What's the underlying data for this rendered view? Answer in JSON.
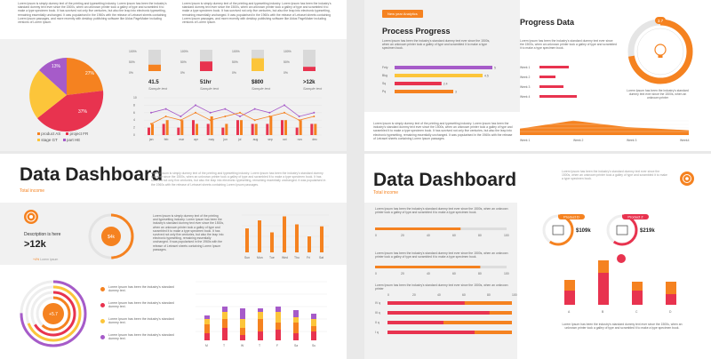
{
  "colors": {
    "orange": "#f58220",
    "red": "#e8334f",
    "yellow": "#fcc53a",
    "purple": "#a65bc9",
    "grey": "#dcdcdc"
  },
  "lorem": {
    "p_long": "Lorem Ipsum is simply dummy text of the printing and typesetting industry. Lorem Ipsum has been the industry's standard dummy text ever since the 1500s, when an unknown printer took a galley of type and scrambled it to make a type specimen book. It has survived not only five centuries, but also the leap into electronic typesetting, remaining essentially unchanged. It was popularised in the 1960s with the release of Letraset sheets containing Lorem Ipsum passages, and more recently with desktop publishing software like Aldus PageMaker including versions of Lorem Ipsum.",
    "p_med": "Lorem Ipsum is simply dummy text of the printing and typesetting industry. Lorem Ipsum has been the industry's standard dummy text ever since the 1500s, when an unknown printer took a galley of type and scrambled it to make a type specimen book. It has survived not only five centuries, but also the leap into electronic typesetting, remaining essentially unchanged. It was popularised in the 1960s with the release of Letraset sheets containing Lorem Ipsum passages.",
    "p_short": "Lorem Ipsum has been the industry's standard dummy text ever since the 1500s, when an unknown printer took a galley of type and scrambled it to make a type specimen book.",
    "p_tiny": "Lorem Ipsum has been the industry's standard dummy text ever since the 1500s, when an unknown printer",
    "p_item": "Lorem Ipsum has been the industry's standard dummy text."
  },
  "slide1": {
    "pie": {
      "labels": [
        "27%",
        "37%",
        "13%"
      ],
      "legend": [
        "product AS",
        "project FR",
        "stage GT",
        "part HE"
      ]
    },
    "stats": [
      {
        "value": "41.5",
        "label": "Sample text",
        "fill": 0.3
      },
      {
        "value": "51hr",
        "label": "Sample text",
        "fill": 0.45
      },
      {
        "value": "$800",
        "label": "Sample text",
        "fill": 0.6
      },
      {
        "value": ">12k",
        "label": "Sample text",
        "fill": 0.2
      }
    ],
    "bar_ticks": [
      "100%",
      "50%",
      "0%"
    ],
    "combo": {
      "months": [
        "jan",
        "feb",
        "mar",
        "apr",
        "may",
        "jun",
        "jul",
        "aug",
        "sep",
        "oct",
        "nov",
        "dec"
      ],
      "yticks": [
        "10",
        "8",
        "6",
        "4",
        "2",
        "0"
      ]
    }
  },
  "slide2": {
    "badge": "New year Analytics",
    "process_title": "Process Progress",
    "bars": [
      {
        "label": "Fely",
        "value": "5",
        "v": 5
      },
      {
        "label": "Bkg",
        "value": "4.5",
        "v": 4.5
      },
      {
        "label": "Sq",
        "value": "2.4",
        "v": 2.4
      },
      {
        "label": "Pq",
        "value": "3",
        "v": 3
      }
    ],
    "progress_title": "Progress Data",
    "ring_value": "3.7",
    "weeks": [
      {
        "label": "Week 1",
        "v": 0.55
      },
      {
        "label": "Week 2",
        "v": 0.3
      },
      {
        "label": "Week 3",
        "v": 0.45
      },
      {
        "label": "Week 4",
        "v": 0.7
      }
    ],
    "area_labels": [
      "Week 1",
      "Week 2",
      "Week 3",
      "Week4"
    ]
  },
  "slide3": {
    "title": "Data Dashboard",
    "subtitle": "Total income",
    "desc_label": "Description is here",
    "desc_value": ">12k",
    "small_note": "+4%",
    "small_note2": "Lorem ipsum",
    "ring_value": "$4k",
    "days": [
      "Sun",
      "Mon",
      "Tue",
      "Wed",
      "Thu",
      "Fri",
      "Sat"
    ],
    "day_values": [
      60,
      80,
      50,
      90,
      70,
      40,
      65
    ],
    "center_value": "+5.7",
    "week_days": [
      "M",
      "T",
      "W",
      "T",
      "F",
      "Sa",
      "Su"
    ]
  },
  "slide4": {
    "title": "Data Dashboard",
    "subtitle": "Total income",
    "axis": [
      "0",
      "20",
      "40",
      "60",
      "80",
      "100"
    ],
    "hbars": [
      {
        "label": "IV q",
        "v": 0.62
      },
      {
        "label": "III q",
        "v": 0.82
      },
      {
        "label": "II q",
        "v": 0.45
      },
      {
        "label": "I q",
        "v": 0.7
      }
    ],
    "products": [
      {
        "name": "Product D",
        "value": "$109k"
      },
      {
        "name": "Product Z",
        "value": "$219k"
      }
    ],
    "cols": [
      "A",
      "B",
      "C",
      "D"
    ]
  }
}
